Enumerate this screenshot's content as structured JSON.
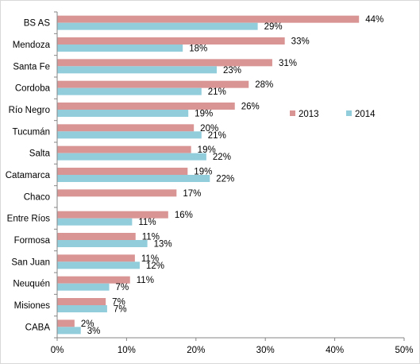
{
  "chart_data": {
    "type": "bar",
    "orientation": "horizontal",
    "categories": [
      "BS AS",
      "Mendoza",
      "Santa Fe",
      "Cordoba",
      "Río Negro",
      "Tucumán",
      "Salta",
      "Catamarca",
      "Chaco",
      "Entre Ríos",
      "Formosa",
      "San Juan",
      "Neuquén",
      "Misiones",
      "CABA"
    ],
    "series": [
      {
        "name": "2013",
        "color": "#d99594",
        "values": [
          43.5,
          32.8,
          31.0,
          27.6,
          25.6,
          19.7,
          19.3,
          18.8,
          17.2,
          16.0,
          11.3,
          11.2,
          10.5,
          7.0,
          2.5
        ],
        "labels": [
          "44%",
          "33%",
          "31%",
          "28%",
          "26%",
          "20%",
          "19%",
          "19%",
          "17%",
          "16%",
          "11%",
          "11%",
          "11%",
          "7%",
          "2%"
        ]
      },
      {
        "name": "2014",
        "color": "#92cddc",
        "values": [
          28.9,
          18.1,
          23.0,
          20.8,
          18.9,
          20.8,
          21.5,
          22.0,
          null,
          10.8,
          13.0,
          11.9,
          7.5,
          7.2,
          3.4
        ],
        "labels": [
          "29%",
          "18%",
          "23%",
          "21%",
          "19%",
          "21%",
          "22%",
          "22%",
          "",
          "11%",
          "13%",
          "12%",
          "7%",
          "7%",
          "3%"
        ]
      }
    ],
    "x_ticks": [
      "0%",
      "10%",
      "20%",
      "30%",
      "40%",
      "50%"
    ],
    "xlim": [
      0,
      50
    ],
    "legend_position": "right",
    "grid": false,
    "title": "",
    "xlabel": "",
    "ylabel": ""
  }
}
